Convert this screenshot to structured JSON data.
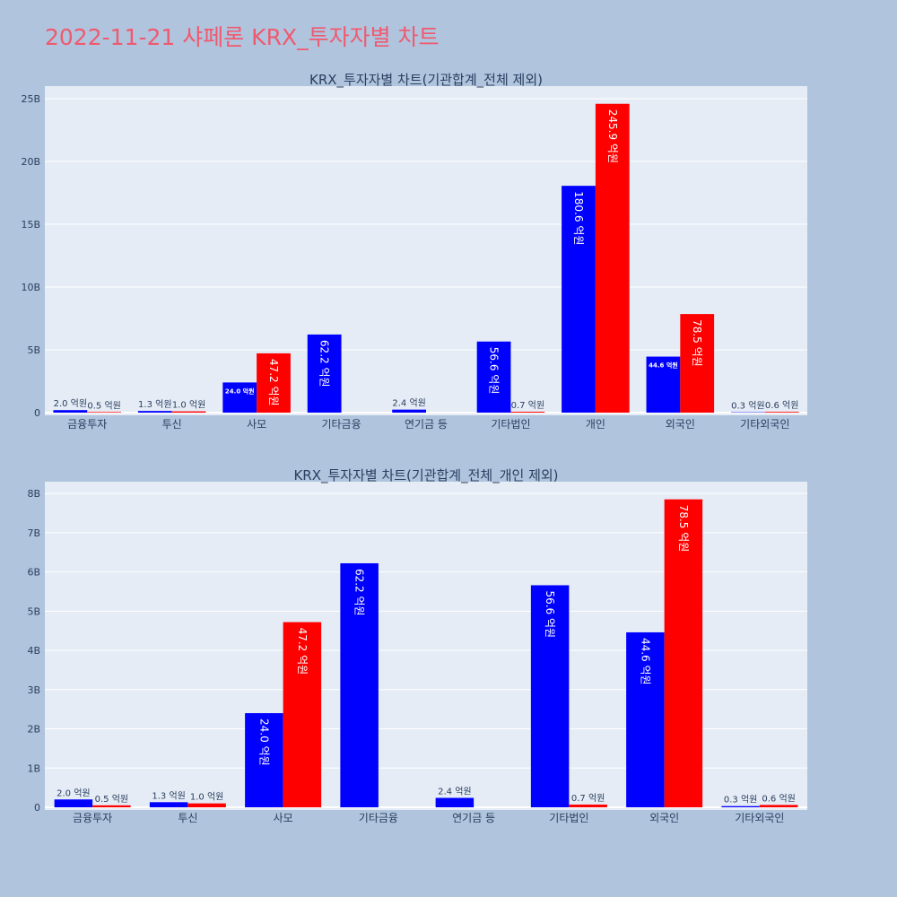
{
  "page": {
    "title": "2022-11-21 샤페론 KRX_투자자별 차트"
  },
  "colors": {
    "background": "#b0c4de",
    "plot_background": "#e5ecf6",
    "title": "#ef5a6f",
    "buy": "#0000ff",
    "sell": "#ff0000",
    "text": "#2a3f5f"
  },
  "chart_data": [
    {
      "type": "bar",
      "title": "KRX_투자자별 차트(기관합계_전체 제외)",
      "categories": [
        "금융투자",
        "투신",
        "사모",
        "기타금융",
        "연기금 등",
        "기타법인",
        "개인",
        "외국인",
        "기타외국인"
      ],
      "series": [
        {
          "color": "#0000ff",
          "values": [
            200000000,
            130000000,
            2400000000,
            6220000000,
            240000000,
            5660000000,
            18060000000,
            4460000000,
            30000000
          ],
          "labels": [
            "2.0 억원",
            "1.3 억원",
            "24.0 억원",
            "62.2 억원",
            "2.4 억원",
            "56.6 억원",
            "180.6 억원",
            "44.6 억원",
            "0.3 억원"
          ]
        },
        {
          "color": "#ff0000",
          "values": [
            50000000,
            100000000,
            4720000000,
            0,
            0,
            70000000,
            24590000000,
            7850000000,
            60000000
          ],
          "labels": [
            "0.5 억원",
            "1.0 억원",
            "47.2 억원",
            "",
            "",
            "0.7 억원",
            "245.9 억원",
            "78.5 억원",
            "0.6 억원"
          ]
        }
      ],
      "yticks": [
        "0",
        "5B",
        "10B",
        "15B",
        "20B",
        "25B"
      ],
      "ylim": [
        0,
        26000000000
      ],
      "grid": true,
      "legend": "none"
    },
    {
      "type": "bar",
      "title": "KRX_투자자별 차트(기관합계_전체_개인 제외)",
      "categories": [
        "금융투자",
        "투신",
        "사모",
        "기타금융",
        "연기금 등",
        "기타법인",
        "외국인",
        "기타외국인"
      ],
      "series": [
        {
          "color": "#0000ff",
          "values": [
            200000000,
            130000000,
            2400000000,
            6220000000,
            240000000,
            5660000000,
            4460000000,
            30000000
          ],
          "labels": [
            "2.0 억원",
            "1.3 억원",
            "24.0 억원",
            "62.2 억원",
            "2.4 억원",
            "56.6 억원",
            "44.6 억원",
            "0.3 억원"
          ]
        },
        {
          "color": "#ff0000",
          "values": [
            50000000,
            100000000,
            4720000000,
            0,
            0,
            70000000,
            7850000000,
            60000000
          ],
          "labels": [
            "0.5 억원",
            "1.0 억원",
            "47.2 억원",
            "",
            "",
            "0.7 억원",
            "78.5 억원",
            "0.6 억원"
          ]
        }
      ],
      "yticks": [
        "0",
        "1B",
        "2B",
        "3B",
        "4B",
        "5B",
        "6B",
        "7B",
        "8B"
      ],
      "ylim": [
        0,
        8300000000
      ],
      "grid": true,
      "legend": "none"
    }
  ]
}
